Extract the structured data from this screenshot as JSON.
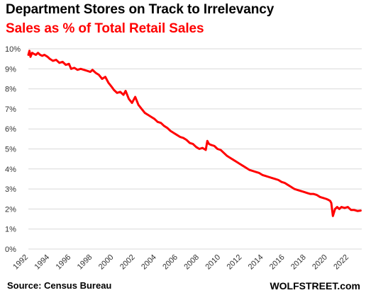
{
  "chart_data": {
    "type": "line",
    "title": "Department Stores on Track to Irrelevancy",
    "subtitle": "Sales as % of Total Retail Sales",
    "xlabel": "",
    "ylabel": "",
    "xlim": [
      1992,
      2023.2
    ],
    "ylim": [
      0,
      10
    ],
    "grid": true,
    "x_ticks": [
      "1992",
      "1994",
      "1996",
      "1998",
      "2000",
      "2002",
      "2004",
      "2006",
      "2008",
      "2010",
      "2012",
      "2014",
      "2016",
      "2018",
      "2020",
      "2022"
    ],
    "y_ticks": [
      "0%",
      "1%",
      "2%",
      "3%",
      "4%",
      "5%",
      "6%",
      "7%",
      "8%",
      "9%",
      "10%"
    ],
    "line_color": "#ff0000",
    "series": [
      {
        "name": "",
        "x": [
          1992.0,
          1992.1,
          1992.2,
          1992.35,
          1992.5,
          1992.7,
          1992.9,
          1993.1,
          1993.3,
          1993.5,
          1993.8,
          1994.0,
          1994.3,
          1994.6,
          1994.9,
          1995.2,
          1995.5,
          1995.8,
          1996.0,
          1996.3,
          1996.6,
          1996.9,
          1997.2,
          1997.5,
          1997.8,
          1998.0,
          1998.3,
          1998.6,
          1998.9,
          1999.2,
          1999.5,
          1999.8,
          2000.0,
          2000.3,
          2000.6,
          2000.9,
          2001.1,
          2001.4,
          2001.7,
          2002.0,
          2002.3,
          2002.6,
          2002.9,
          2003.2,
          2003.5,
          2003.8,
          2004.1,
          2004.4,
          2004.7,
          2005.0,
          2005.3,
          2005.6,
          2005.9,
          2006.2,
          2006.5,
          2006.8,
          2007.1,
          2007.4,
          2007.7,
          2008.0,
          2008.3,
          2008.6,
          2008.75,
          2008.9,
          2009.1,
          2009.4,
          2009.7,
          2010.0,
          2010.3,
          2010.6,
          2010.9,
          2011.2,
          2011.5,
          2011.8,
          2012.1,
          2012.4,
          2012.7,
          2013.0,
          2013.3,
          2013.6,
          2013.9,
          2014.2,
          2014.5,
          2014.8,
          2015.1,
          2015.4,
          2015.7,
          2016.0,
          2016.3,
          2016.6,
          2016.9,
          2017.2,
          2017.5,
          2017.8,
          2018.1,
          2018.4,
          2018.7,
          2019.0,
          2019.3,
          2019.6,
          2019.9,
          2020.1,
          2020.25,
          2020.35,
          2020.5,
          2020.7,
          2020.9,
          2021.1,
          2021.3,
          2021.6,
          2021.9,
          2022.2,
          2022.5,
          2022.8,
          2023.1
        ],
        "y": [
          9.7,
          9.9,
          9.6,
          9.8,
          9.75,
          9.7,
          9.8,
          9.7,
          9.65,
          9.7,
          9.6,
          9.5,
          9.4,
          9.45,
          9.3,
          9.35,
          9.2,
          9.25,
          9.0,
          9.05,
          8.95,
          9.0,
          8.95,
          8.9,
          8.85,
          8.95,
          8.8,
          8.7,
          8.5,
          8.6,
          8.3,
          8.1,
          7.95,
          7.8,
          7.85,
          7.7,
          7.9,
          7.5,
          7.3,
          7.6,
          7.2,
          7.0,
          6.8,
          6.7,
          6.6,
          6.5,
          6.35,
          6.3,
          6.15,
          6.05,
          5.9,
          5.8,
          5.7,
          5.6,
          5.55,
          5.45,
          5.3,
          5.25,
          5.1,
          5.0,
          5.05,
          4.95,
          5.4,
          5.25,
          5.2,
          5.15,
          5.0,
          4.95,
          4.8,
          4.65,
          4.55,
          4.45,
          4.35,
          4.25,
          4.15,
          4.05,
          3.95,
          3.9,
          3.85,
          3.8,
          3.7,
          3.65,
          3.6,
          3.55,
          3.5,
          3.45,
          3.35,
          3.3,
          3.2,
          3.1,
          3.0,
          2.95,
          2.9,
          2.85,
          2.8,
          2.75,
          2.75,
          2.7,
          2.6,
          2.55,
          2.5,
          2.45,
          2.4,
          2.3,
          1.65,
          2.0,
          2.1,
          2.0,
          2.1,
          2.05,
          2.1,
          1.95,
          1.95,
          1.9,
          1.92
        ]
      }
    ]
  },
  "footer": {
    "source": "Source: Census Bureau",
    "credit": "WOLFSTREET.com"
  }
}
